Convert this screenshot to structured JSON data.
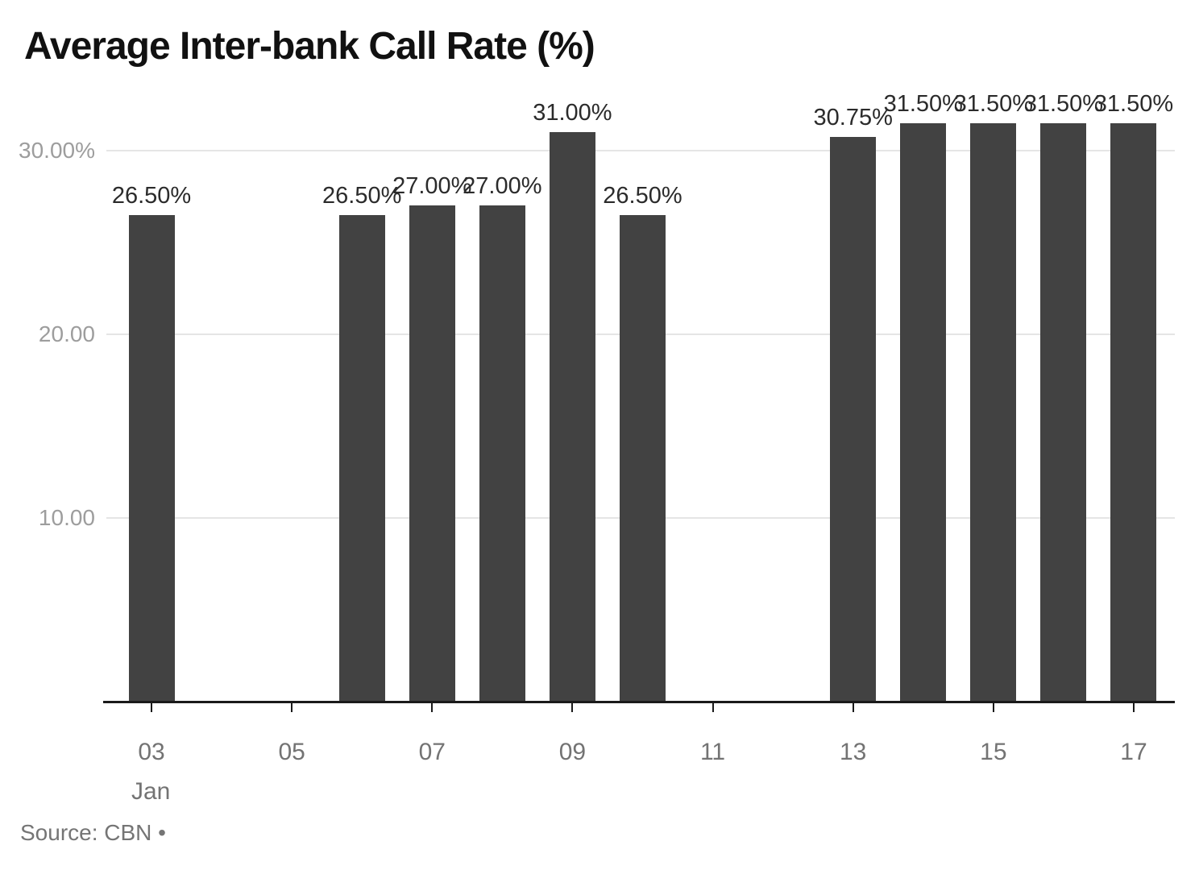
{
  "page": {
    "background": "#ffffff"
  },
  "chart_data": {
    "type": "bar",
    "title": "Average Inter-bank Call Rate (%)",
    "xlabel": "",
    "ylabel": "",
    "month_label": "Jan",
    "ylim": [
      0,
      33.4
    ],
    "grid": "horizontal-only",
    "legend": "none",
    "y_ticks": [
      {
        "value": 30,
        "label": "30.00%"
      },
      {
        "value": 20,
        "label": "20.00"
      },
      {
        "value": 10,
        "label": "10.00"
      }
    ],
    "x_ticks": [
      {
        "day": 3,
        "label": "03",
        "sublabel": "Jan"
      },
      {
        "day": 5,
        "label": "05"
      },
      {
        "day": 7,
        "label": "07"
      },
      {
        "day": 9,
        "label": "09"
      },
      {
        "day": 11,
        "label": "11"
      },
      {
        "day": 13,
        "label": "13"
      },
      {
        "day": 15,
        "label": "15"
      },
      {
        "day": 17,
        "label": "17"
      }
    ],
    "bars": [
      {
        "day": 3,
        "value": 26.5,
        "label": "26.50%"
      },
      {
        "day": 6,
        "value": 26.5,
        "label": "26.50%"
      },
      {
        "day": 7,
        "value": 27.0,
        "label": "27.00%"
      },
      {
        "day": 8,
        "value": 27.0,
        "label": "27.00%"
      },
      {
        "day": 9,
        "value": 31.0,
        "label": "31.00%"
      },
      {
        "day": 10,
        "value": 26.5,
        "label": "26.50%"
      },
      {
        "day": 13,
        "value": 30.75,
        "label": "30.75%"
      },
      {
        "day": 14,
        "value": 31.5,
        "label": "31.50%"
      },
      {
        "day": 15,
        "value": 31.5,
        "label": "31.50%"
      },
      {
        "day": 16,
        "value": 31.5,
        "label": "31.50%"
      },
      {
        "day": 17,
        "value": 31.5,
        "label": "31.50%"
      }
    ],
    "colors": {
      "bar": "#424242",
      "value_label": "#2b2b2b",
      "y_tick_label": "#9d9d9d",
      "x_tick_label": "#737373",
      "gridline": "#e5e5e5",
      "axis_line": "#1a1a1a",
      "title": "#111111",
      "source": "#757575",
      "background": "#ffffff"
    },
    "source": "Source: CBN •"
  }
}
